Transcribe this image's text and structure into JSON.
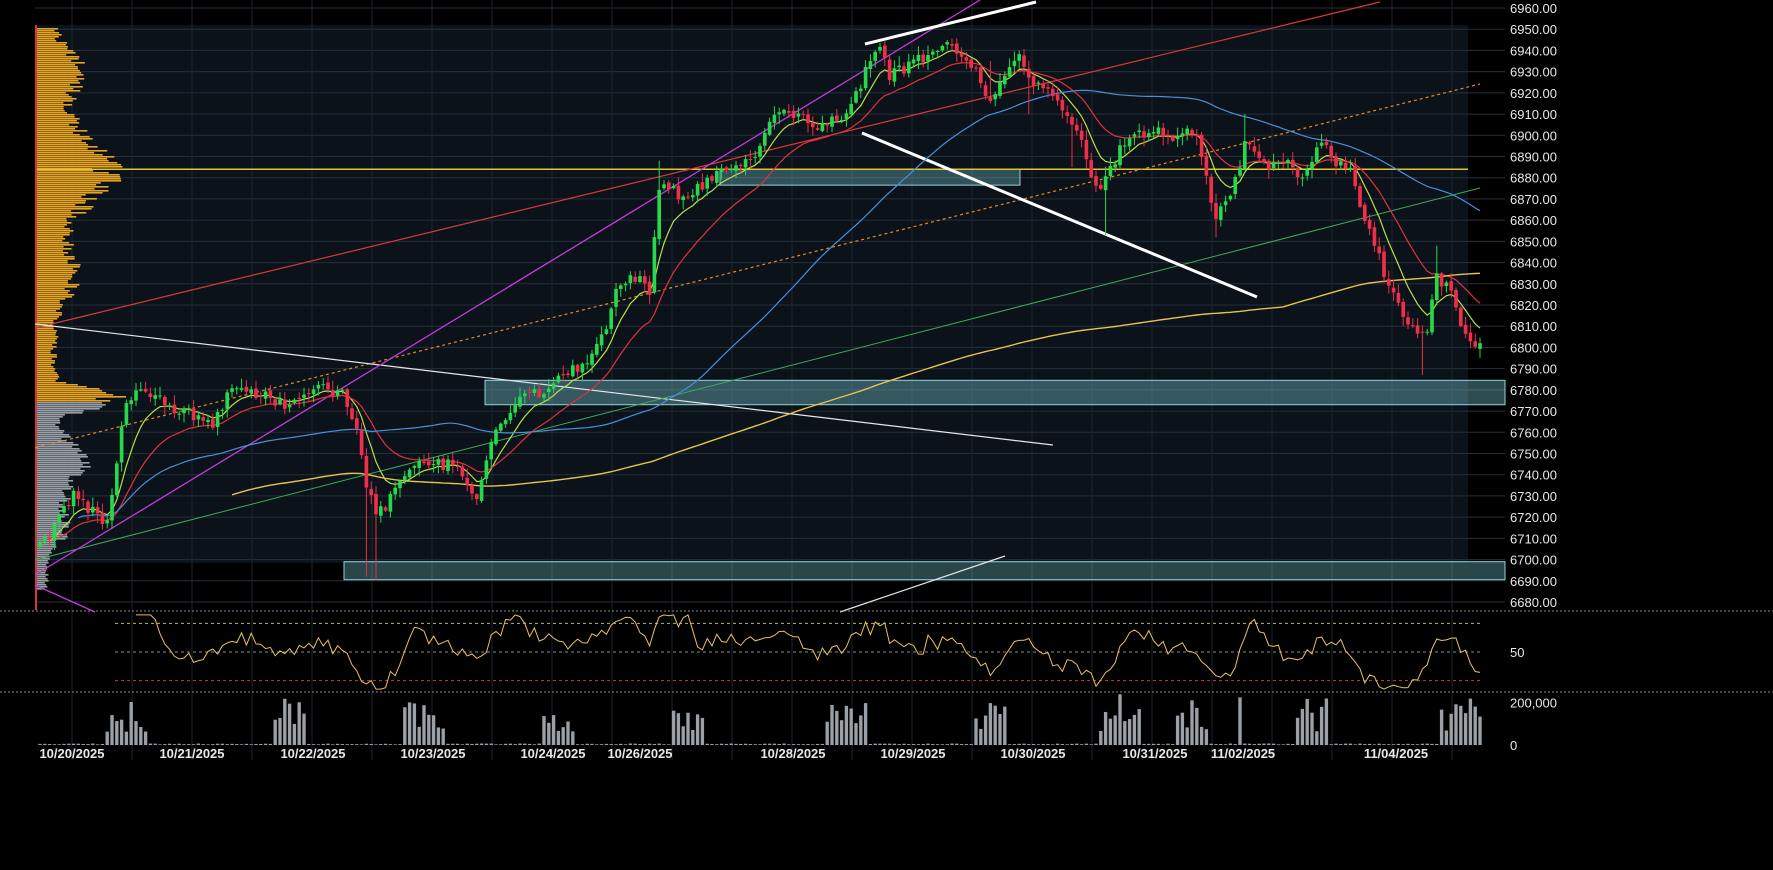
{
  "chart_data": {
    "type": "candlestick",
    "price_axis": {
      "ticks": [
        6680,
        6690,
        6700,
        6710,
        6720,
        6730,
        6740,
        6750,
        6760,
        6770,
        6780,
        6790,
        6800,
        6810,
        6820,
        6830,
        6840,
        6850,
        6860,
        6870,
        6880,
        6890,
        6900,
        6910,
        6920,
        6930,
        6940,
        6950,
        6960
      ],
      "tick_labels": [
        "6680.00",
        "6690.00",
        "6700.00",
        "6710.00",
        "6720.00",
        "6730.00",
        "6740.00",
        "6750.00",
        "6760.00",
        "6770.00",
        "6780.00",
        "6790.00",
        "6800.00",
        "6810.00",
        "6820.00",
        "6830.00",
        "6840.00",
        "6850.00",
        "6860.00",
        "6870.00",
        "6880.00",
        "6890.00",
        "6900.00",
        "6910.00",
        "6920.00",
        "6930.00",
        "6940.00",
        "6950.00",
        "6960.00"
      ],
      "range": [
        6675,
        6963
      ]
    },
    "date_labels": [
      "10/20/2025",
      "10/21/2025",
      "10/22/2025",
      "10/23/2025",
      "10/24/2025",
      "10/26/2025",
      "10/28/2025",
      "10/29/2025",
      "10/30/2025",
      "10/31/2025",
      "11/02/2025",
      "11/04/2025"
    ],
    "key_price_level": 6884,
    "price_anchors": [
      [
        0,
        6708
      ],
      [
        2,
        6712
      ],
      [
        7,
        6730
      ],
      [
        11,
        6722
      ],
      [
        14,
        6718
      ],
      [
        18,
        6776
      ],
      [
        24,
        6780
      ],
      [
        27,
        6770
      ],
      [
        34,
        6768
      ],
      [
        36,
        6765
      ],
      [
        40,
        6780
      ],
      [
        46,
        6778
      ],
      [
        52,
        6771
      ],
      [
        58,
        6783
      ],
      [
        63,
        6778
      ],
      [
        66,
        6762
      ],
      [
        68,
        6735
      ],
      [
        70,
        6722
      ],
      [
        73,
        6728
      ],
      [
        78,
        6745
      ],
      [
        84,
        6745
      ],
      [
        88,
        6742
      ],
      [
        91,
        6730
      ],
      [
        95,
        6762
      ],
      [
        100,
        6777
      ],
      [
        105,
        6780
      ],
      [
        110,
        6787
      ],
      [
        114,
        6795
      ],
      [
        118,
        6810
      ],
      [
        120,
        6830
      ],
      [
        125,
        6832
      ],
      [
        127,
        6825
      ],
      [
        129,
        6875
      ],
      [
        134,
        6872
      ],
      [
        140,
        6880
      ],
      [
        145,
        6885
      ],
      [
        149,
        6890
      ],
      [
        152,
        6905
      ],
      [
        155,
        6912
      ],
      [
        158,
        6908
      ],
      [
        163,
        6905
      ],
      [
        169,
        6912
      ],
      [
        172,
        6930
      ],
      [
        175,
        6940
      ],
      [
        177,
        6928
      ],
      [
        180,
        6932
      ],
      [
        185,
        6938
      ],
      [
        189,
        6945
      ],
      [
        192,
        6935
      ],
      [
        195,
        6930
      ],
      [
        198,
        6915
      ],
      [
        201,
        6928
      ],
      [
        204,
        6940
      ],
      [
        206,
        6925
      ],
      [
        209,
        6922
      ],
      [
        212,
        6918
      ],
      [
        215,
        6908
      ],
      [
        218,
        6890
      ],
      [
        220,
        6875
      ],
      [
        222,
        6878
      ],
      [
        225,
        6895
      ],
      [
        228,
        6900
      ],
      [
        233,
        6902
      ],
      [
        236,
        6900
      ],
      [
        239,
        6905
      ],
      [
        241,
        6898
      ],
      [
        243,
        6878
      ],
      [
        245,
        6860
      ],
      [
        248,
        6872
      ],
      [
        251,
        6895
      ],
      [
        254,
        6890
      ],
      [
        257,
        6885
      ],
      [
        260,
        6888
      ],
      [
        263,
        6880
      ],
      [
        266,
        6893
      ],
      [
        268,
        6895
      ],
      [
        270,
        6885
      ],
      [
        273,
        6885
      ],
      [
        275,
        6865
      ],
      [
        278,
        6850
      ],
      [
        281,
        6828
      ],
      [
        284,
        6815
      ],
      [
        286,
        6808
      ],
      [
        289,
        6805
      ],
      [
        291,
        6835
      ],
      [
        294,
        6825
      ],
      [
        296,
        6812
      ],
      [
        298,
        6800
      ],
      [
        300,
        6802
      ]
    ],
    "candle_count": 301,
    "indicators": {
      "rsi": {
        "tick_labels": [
          "50"
        ],
        "levels": [
          70,
          50,
          30
        ],
        "range": [
          22,
          78
        ]
      },
      "volume": {
        "tick_labels": [
          "200,000",
          "0"
        ],
        "ticks": [
          200000,
          0
        ],
        "max": 260000
      }
    },
    "zones": [
      {
        "from": 6773,
        "to": 6784
      },
      {
        "from": 6691,
        "to": 6699
      },
      {
        "from": 6877,
        "to": 6883
      }
    ]
  }
}
